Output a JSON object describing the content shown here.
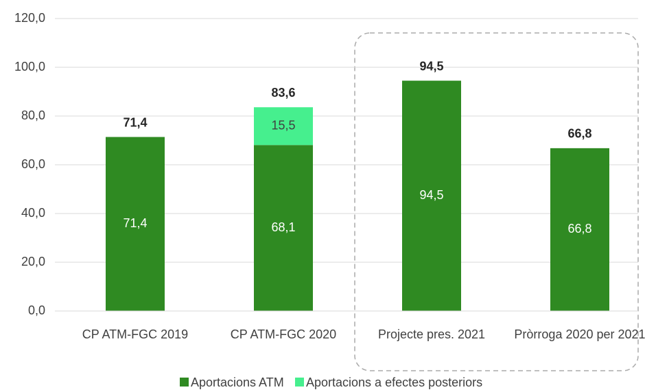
{
  "chart_data": {
    "type": "stacked_bar",
    "categories": [
      "CP ATM-FGC 2019",
      "CP ATM-FGC 2020",
      "Projecte pres. 2021",
      "Pròrroga 2020 per 2021"
    ],
    "series": [
      {
        "name": "Aportacions ATM",
        "color": "#2f8a22",
        "values": [
          71.4,
          68.1,
          94.5,
          66.8
        ],
        "value_labels": [
          "71,4",
          "68,1",
          "94,5",
          "66,8"
        ]
      },
      {
        "name": "Aportacions a efectes posteriors",
        "color": "#46ef8e",
        "values": [
          null,
          15.5,
          null,
          null
        ],
        "value_labels": [
          null,
          "15,5",
          null,
          null
        ]
      }
    ],
    "totals": [
      71.4,
      83.6,
      94.5,
      66.8
    ],
    "total_labels": [
      "71,4",
      "83,6",
      "94,5",
      "66,8"
    ],
    "ylim": [
      0,
      120
    ],
    "yticks": [
      {
        "value": 0,
        "label": "0,0"
      },
      {
        "value": 20,
        "label": "20,0"
      },
      {
        "value": 40,
        "label": "40,0"
      },
      {
        "value": 60,
        "label": "60,0"
      },
      {
        "value": 80,
        "label": "80,0"
      },
      {
        "value": 100,
        "label": "100,0"
      },
      {
        "value": 120,
        "label": "120,0"
      }
    ],
    "grid": true,
    "legend": "bottom"
  }
}
